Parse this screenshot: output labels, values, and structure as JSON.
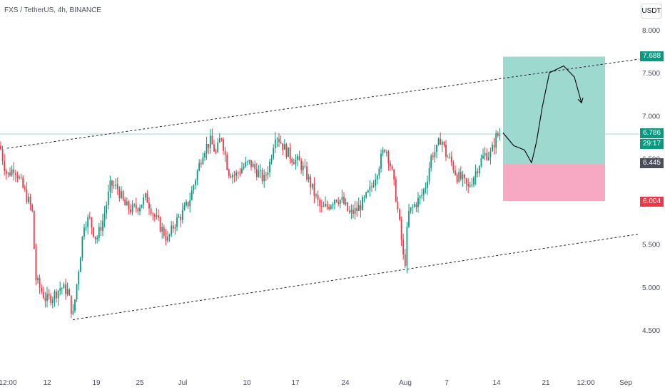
{
  "header": {
    "symbol_title": "FXS / TetherUS, 4h, BINANCE",
    "currency": "USDT"
  },
  "price_tags": {
    "target": "7.688",
    "last": "6.786",
    "countdown": "29:17",
    "entry": "6.445",
    "stop": "6.004"
  },
  "colors": {
    "up": "#089981",
    "down": "#f23645",
    "profit_zone": "#9ed9cf",
    "loss_zone": "#f7a9c4",
    "channel_line": "#1e222d",
    "last_price_line": "#9ed9cf"
  },
  "chart_data": {
    "type": "candlestick",
    "ylim": [
      4.3,
      8.2
    ],
    "y_ticks": [
      "8.000",
      "7.500",
      "7.000",
      "6.500",
      "5.500",
      "5.000",
      "4.500"
    ],
    "x_ticks": [
      "12:00",
      "12",
      "19",
      "25",
      "Jul",
      "10",
      "17",
      "24",
      "Aug",
      "7",
      "14",
      "21",
      "12:00",
      "Sep"
    ],
    "close_path": [
      [
        0,
        6.65
      ],
      [
        5,
        6.45
      ],
      [
        10,
        6.3
      ],
      [
        20,
        6.4
      ],
      [
        30,
        6.2
      ],
      [
        40,
        6.0
      ],
      [
        45,
        5.9
      ],
      [
        50,
        5.1
      ],
      [
        58,
        4.95
      ],
      [
        65,
        4.85
      ],
      [
        75,
        4.9
      ],
      [
        85,
        5.0
      ],
      [
        95,
        4.95
      ],
      [
        102,
        4.65
      ],
      [
        110,
        5.2
      ],
      [
        118,
        5.75
      ],
      [
        125,
        5.8
      ],
      [
        135,
        5.55
      ],
      [
        145,
        5.8
      ],
      [
        155,
        6.2
      ],
      [
        165,
        6.15
      ],
      [
        175,
        5.95
      ],
      [
        185,
        5.9
      ],
      [
        195,
        5.95
      ],
      [
        205,
        6.05
      ],
      [
        215,
        5.85
      ],
      [
        225,
        5.7
      ],
      [
        235,
        5.55
      ],
      [
        245,
        5.75
      ],
      [
        255,
        5.85
      ],
      [
        265,
        6.0
      ],
      [
        275,
        6.3
      ],
      [
        285,
        6.6
      ],
      [
        295,
        6.7
      ],
      [
        303,
        6.55
      ],
      [
        310,
        6.78
      ],
      [
        320,
        6.35
      ],
      [
        330,
        6.3
      ],
      [
        340,
        6.4
      ],
      [
        350,
        6.45
      ],
      [
        360,
        6.35
      ],
      [
        370,
        6.25
      ],
      [
        378,
        6.45
      ],
      [
        386,
        6.8
      ],
      [
        393,
        6.7
      ],
      [
        400,
        6.6
      ],
      [
        410,
        6.5
      ],
      [
        420,
        6.45
      ],
      [
        430,
        6.3
      ],
      [
        440,
        6.1
      ],
      [
        450,
        5.9
      ],
      [
        460,
        5.95
      ],
      [
        470,
        6.05
      ],
      [
        480,
        6.0
      ],
      [
        490,
        5.85
      ],
      [
        500,
        5.9
      ],
      [
        510,
        6.0
      ],
      [
        520,
        6.15
      ],
      [
        530,
        6.4
      ],
      [
        540,
        6.65
      ],
      [
        548,
        6.4
      ],
      [
        555,
        6.05
      ],
      [
        562,
        5.6
      ],
      [
        567,
        5.2
      ],
      [
        572,
        5.85
      ],
      [
        580,
        5.95
      ],
      [
        590,
        6.05
      ],
      [
        597,
        6.2
      ],
      [
        605,
        6.55
      ],
      [
        612,
        6.6
      ],
      [
        618,
        6.75
      ],
      [
        625,
        6.55
      ],
      [
        633,
        6.45
      ],
      [
        640,
        6.3
      ],
      [
        648,
        6.25
      ],
      [
        656,
        6.15
      ],
      [
        664,
        6.3
      ],
      [
        672,
        6.45
      ],
      [
        680,
        6.55
      ],
      [
        688,
        6.55
      ],
      [
        695,
        6.75
      ],
      [
        702,
        6.8
      ]
    ],
    "channel_upper": {
      "from": {
        "x": 10,
        "y": 6.62
      },
      "to": {
        "x": 896,
        "y": 7.66
      }
    },
    "channel_lower": {
      "from": {
        "x": 102,
        "y": 4.62
      },
      "to": {
        "x": 896,
        "y": 5.62
      }
    },
    "long_position": {
      "entry": 6.445,
      "target": 7.688,
      "stop": 6.004,
      "x_from": 705,
      "x_to": 848
    },
    "last_price": 6.786,
    "projection": [
      [
        705,
        6.8
      ],
      [
        720,
        6.65
      ],
      [
        735,
        6.6
      ],
      [
        745,
        6.45
      ],
      [
        752,
        6.7
      ],
      [
        760,
        7.1
      ],
      [
        770,
        7.5
      ],
      [
        790,
        7.58
      ],
      [
        805,
        7.45
      ],
      [
        815,
        7.15
      ]
    ]
  }
}
